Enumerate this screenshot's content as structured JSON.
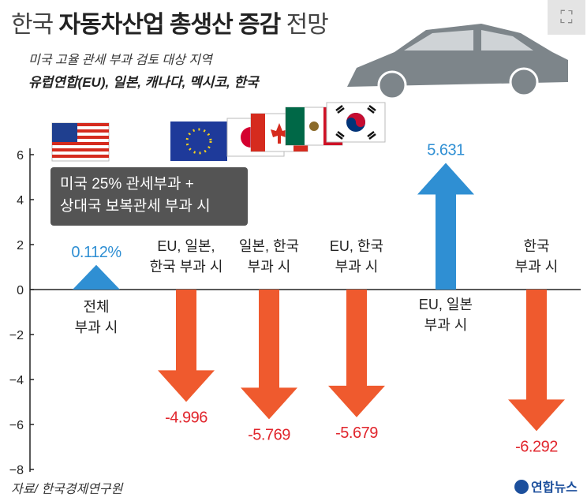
{
  "title_normal": "한국",
  "title_bold": "자동차산업 총생산 증감",
  "title_end": "전망",
  "subtitle1": "미국 고율 관세 부과 검토 대상 지역",
  "subtitle2": "유럽연합(EU), 일본, 캐나다, 멕시코, 한국",
  "tooltip_line1": "미국 25% 관세부과 +",
  "tooltip_line2": "상대국 보복관세 부과 시",
  "source": "자료/ 한국경제연구원",
  "logo": "연합뉴스",
  "icons": {
    "expand": "expand-icon",
    "car": "car-icon",
    "usa_flag": "usa-flag-icon",
    "eu_flag": "eu-flag-icon",
    "japan_flag": "japan-flag-icon",
    "canada_flag": "canada-flag-icon",
    "mexico_flag": "mexico-flag-icon",
    "korea_flag": "korea-flag-icon"
  },
  "colors": {
    "positive": "#2f8fd3",
    "negative": "#ef5a2e",
    "negative_label": "#e1262d",
    "positive_label": "#2f8fd3",
    "axis": "#222222",
    "car": "#7d858a"
  },
  "chart_data": {
    "type": "bar",
    "categories": [
      [
        "전체",
        "부과 시"
      ],
      [
        "EU, 일본,",
        "한국 부과 시"
      ],
      [
        "일본, 한국",
        "부과 시"
      ],
      [
        "EU, 한국",
        "부과 시"
      ],
      [
        "EU, 일본",
        "부과 시"
      ],
      [
        "한국",
        "부과 시"
      ]
    ],
    "values": [
      0.112,
      -4.996,
      -5.769,
      -5.679,
      5.631,
      -6.292
    ],
    "value_labels": [
      "0.112%",
      "-4.996",
      "-5.769",
      "-5.679",
      "5.631",
      "-6.292"
    ],
    "yticks": [
      "6",
      "4",
      "2",
      "0",
      "−2",
      "−4",
      "−6",
      "−8"
    ],
    "ylim": [
      -8,
      7
    ],
    "grid": false,
    "legend": "none"
  }
}
